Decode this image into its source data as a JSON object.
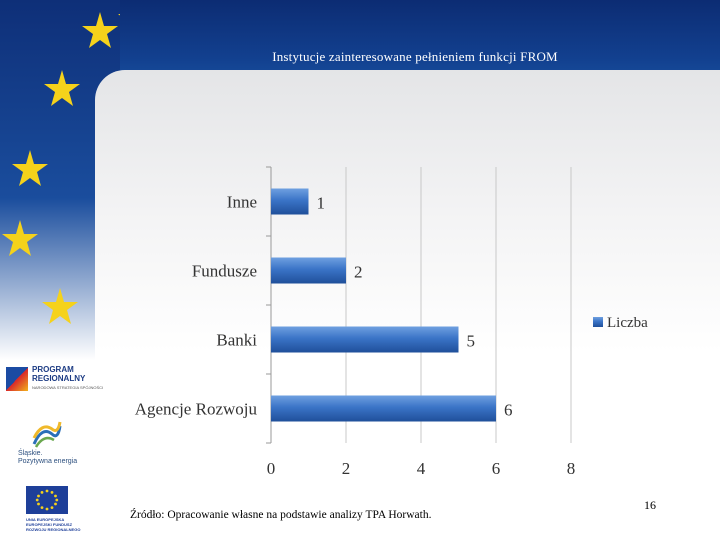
{
  "slide": {
    "title": "Instytucje zainteresowane pełnieniem funkcji FROM",
    "source": "Źródło: Opracowanie własne na podstawie analizy TPA Horwath.",
    "page_number": "16"
  },
  "logos": {
    "program": "PROGRAM REGIONALNY",
    "program_sub": "NARODOWA STRATEGIA SPÓJNOŚCI",
    "slaskie": "Śląskie.",
    "slaskie_sub": "Pozytywna energia",
    "eu": "UNIA EUROPEJSKA",
    "eu_sub1": "EUROPEJSKI FUNDUSZ",
    "eu_sub2": "ROZWOJU REGIONALNEGO"
  },
  "colors": {
    "bar": "#3b74c7",
    "bar_dark": "#1f4f9a",
    "grid": "#c8c8c8",
    "text": "#333333"
  },
  "chart_data": {
    "type": "bar",
    "orientation": "horizontal",
    "categories": [
      "Agencje Rozwoju",
      "Banki",
      "Fundusze",
      "Inne"
    ],
    "series": [
      {
        "name": "Liczba",
        "values": [
          6,
          5,
          2,
          1
        ]
      }
    ],
    "xlim": [
      0,
      8
    ],
    "xticks": [
      0,
      2,
      4,
      6,
      8
    ],
    "grid": true,
    "legend_position": "right",
    "data_labels": true
  }
}
